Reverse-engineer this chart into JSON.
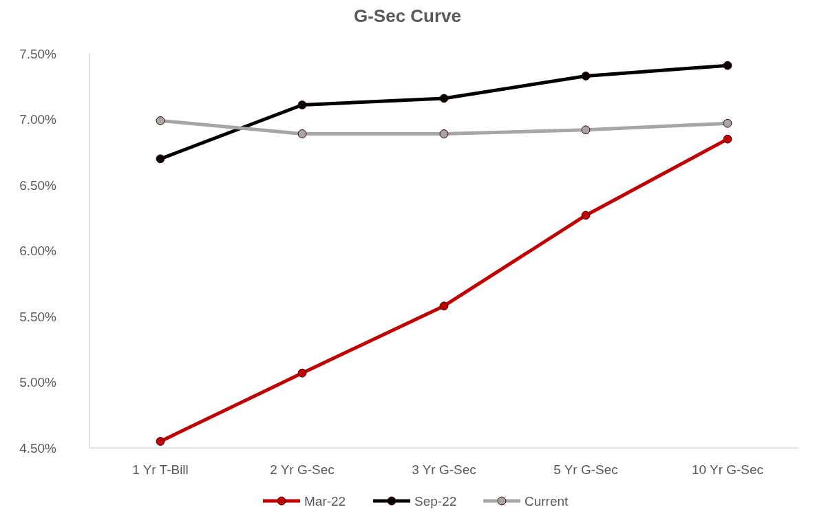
{
  "chart_data": {
    "type": "line",
    "title": "G-Sec Curve",
    "categories": [
      "1 Yr T-Bill",
      "2 Yr G-Sec",
      "3 Yr G-Sec",
      "5 Yr G-Sec",
      "10 Yr G-Sec"
    ],
    "series": [
      {
        "name": "Mar-22",
        "color": "#c00000",
        "values": [
          4.55,
          5.07,
          5.58,
          6.27,
          6.85
        ]
      },
      {
        "name": "Sep-22",
        "color": "#000000",
        "values": [
          6.7,
          7.11,
          7.16,
          7.33,
          7.41
        ]
      },
      {
        "name": "Current",
        "color": "#a6a6a6",
        "values": [
          6.99,
          6.89,
          6.89,
          6.92,
          6.97
        ]
      }
    ],
    "ylim": [
      4.5,
      7.5
    ],
    "yticks": [
      {
        "value": 4.5,
        "label": "4.50%"
      },
      {
        "value": 5,
        "label": "5.00%"
      },
      {
        "value": 5.5,
        "label": "5.50%"
      },
      {
        "value": 6,
        "label": "6.00%"
      },
      {
        "value": 6.5,
        "label": "6.50%"
      },
      {
        "value": 7,
        "label": "7.00%"
      },
      {
        "value": 7.5,
        "label": "7.50%"
      }
    ],
    "marker": "circle",
    "line_style": "solid",
    "legend": "bottom",
    "grid": false
  }
}
